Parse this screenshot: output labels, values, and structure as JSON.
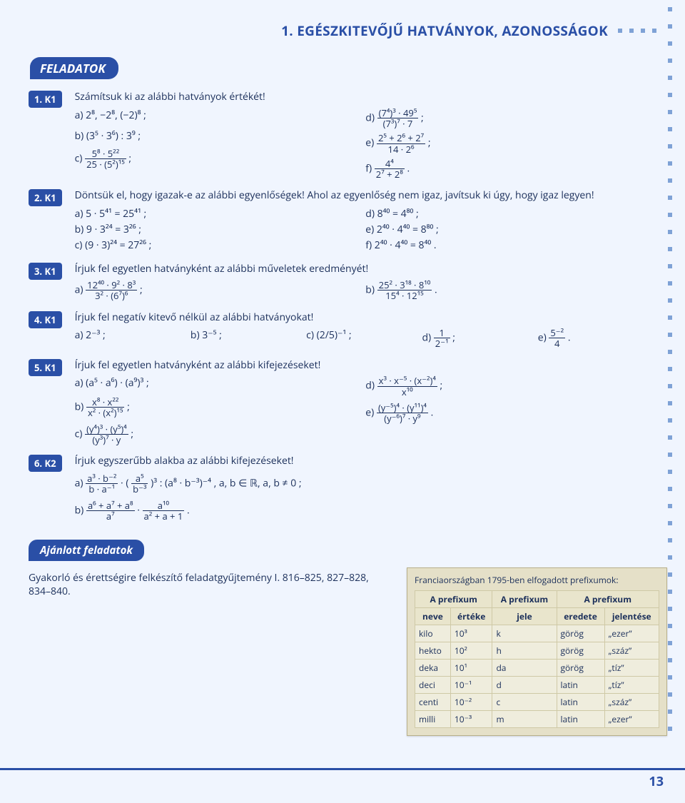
{
  "header": {
    "title": "1. EGÉSZKITEVŐJŰ HATVÁNYOK, AZONOSSÁGOK"
  },
  "section": "FELADATOK",
  "ajanlott": "Ajánlott feladatok",
  "gyakorlo": "Gyakorló és érettségire felkészítő feladatgyűjtemény I. 816–825, 827–828, 834–840.",
  "pagenum": "13",
  "ex": {
    "e1": {
      "badge": "1. K1",
      "intro": "Számítsuk ki az alábbi hatványok értékét!",
      "a": "a) 2⁸,    −2⁸,    (−2)⁸ ;",
      "b": "b) (3⁵ · 3⁶) : 3⁹ ;",
      "c_pre": "c) ",
      "c_num": "5⁸ · 5²²",
      "c_den": "25 · (5²)¹⁵",
      "c_post": " ;",
      "d_pre": "d) ",
      "d_num": "(7⁴)³ · 49⁵",
      "d_den": "(7³)⁷ · 7",
      "d_post": " ;",
      "e_pre": "e) ",
      "e_num": "2⁵ + 2⁶ + 2⁷",
      "e_den": "14 · 2⁶",
      "e_post": " ;",
      "f_pre": "f) ",
      "f_num": "4⁴",
      "f_den": "2⁷ + 2⁸",
      "f_post": " ."
    },
    "e2": {
      "badge": "2. K1",
      "intro": "Döntsük el, hogy igazak-e az alábbi egyenlőségek! Ahol az egyenlőség nem igaz, javítsuk ki úgy, hogy igaz legyen!",
      "a": "a) 5 · 5⁴¹ = 25⁴¹ ;",
      "b": "b) 9 · 3²⁴ = 3²⁶ ;",
      "c": "c) (9 · 3)²⁴ = 27²⁶ ;",
      "d": "d) 8⁴⁰ = 4⁸⁰ ;",
      "e": "e) 2⁴⁰ · 4⁴⁰ = 8⁸⁰ ;",
      "f": "f) 2⁴⁰ · 4⁴⁰ = 8⁴⁰ ."
    },
    "e3": {
      "badge": "3. K1",
      "intro": "Írjuk fel egyetlen hatványként az alábbi műveletek eredményét!",
      "a_pre": "a) ",
      "a_num": "12⁴⁰ · 9² · 8³",
      "a_den": "3² · (6⁷)⁶",
      "a_post": " ;",
      "b_pre": "b) ",
      "b_num": "25² · 3¹⁸ · 8¹⁰",
      "b_den": "15⁴ · 12¹⁵",
      "b_post": " ."
    },
    "e4": {
      "badge": "4. K1",
      "intro": "Írjuk fel negatív kitevő nélkül az alábbi hatványokat!",
      "a": "a) 2⁻³ ;",
      "b": "b) 3⁻⁵ ;",
      "c": "c) (2/5)⁻¹ ;",
      "d_pre": "d) ",
      "d_num": "1",
      "d_den": "2⁻¹",
      "d_post": " ;",
      "e_pre": "e) ",
      "e_num": "5⁻²",
      "e_den": "4",
      "e_post": " ."
    },
    "e5": {
      "badge": "5. K1",
      "intro": "Írjuk fel egyetlen hatványként az alábbi kifejezéseket!",
      "a": "a) (a⁵ · a⁶) · (a⁹)³ ;",
      "b_pre": "b) ",
      "b_num": "x⁸ · x²²",
      "b_den": "x² · (x²)¹⁵",
      "b_post": " ;",
      "c_pre": "c) ",
      "c_num": "(y⁴)³ · (y⁵)⁴",
      "c_den": "(y³)⁷ · y",
      "c_post": " ;",
      "d_pre": "d) ",
      "d_num": "x³ · x⁻⁵ · (x⁻²)⁴",
      "d_den": "x¹⁰",
      "d_post": " ;",
      "e_pre": "e) ",
      "e_num": "(y⁻⁵)⁴ · (y¹¹)⁴",
      "e_den": "(y⁻⁶)⁷ · y⁹",
      "e_post": " ."
    },
    "e6": {
      "badge": "6. K2",
      "intro": "Írjuk egyszerűbb alakba az alábbi kifejezéseket!",
      "a_pre": "a) ",
      "a_f1n": "a³ · b⁻²",
      "a_f1d": "b · a⁻¹",
      "a_mid": " · ",
      "a_f2n": "a⁵",
      "a_f2d": "b⁻³",
      "a_exp_post": " )³ : (a⁸ · b⁻³)⁻⁴ ,   a, b ∈ ℝ,  a, b ≠ 0 ;",
      "b_pre": "b) ",
      "b_f1n": "a⁶ + a⁷ + a⁸",
      "b_f1d": "a⁷",
      "b_mid": " · ",
      "b_f2n": "a¹⁰",
      "b_f2d": "a² + a + 1",
      "b_post": " ."
    }
  },
  "info": {
    "title": "Franciaországban 1795-ben elfogadott prefixumok:",
    "head": {
      "c1a": "A prefixum",
      "c1b_name": "neve",
      "c1b_val": "értéke",
      "c2": "A prefixum",
      "c2b": "jele",
      "c3": "A prefixum",
      "c3b_origin": "eredete",
      "c3b_meaning": "jelentése"
    },
    "rows": [
      {
        "name": "kilo",
        "val": "10³",
        "sign": "k",
        "origin": "görög",
        "mean": "„ezer”"
      },
      {
        "name": "hekto",
        "val": "10²",
        "sign": "h",
        "origin": "görög",
        "mean": "„száz”"
      },
      {
        "name": "deka",
        "val": "10¹",
        "sign": "da",
        "origin": "görög",
        "mean": "„tíz”"
      },
      {
        "name": "deci",
        "val": "10⁻¹",
        "sign": "d",
        "origin": "latin",
        "mean": "„tíz”"
      },
      {
        "name": "centi",
        "val": "10⁻²",
        "sign": "c",
        "origin": "latin",
        "mean": "„száz”"
      },
      {
        "name": "milli",
        "val": "10⁻³",
        "sign": "m",
        "origin": "latin",
        "mean": "„ezer”"
      }
    ]
  }
}
